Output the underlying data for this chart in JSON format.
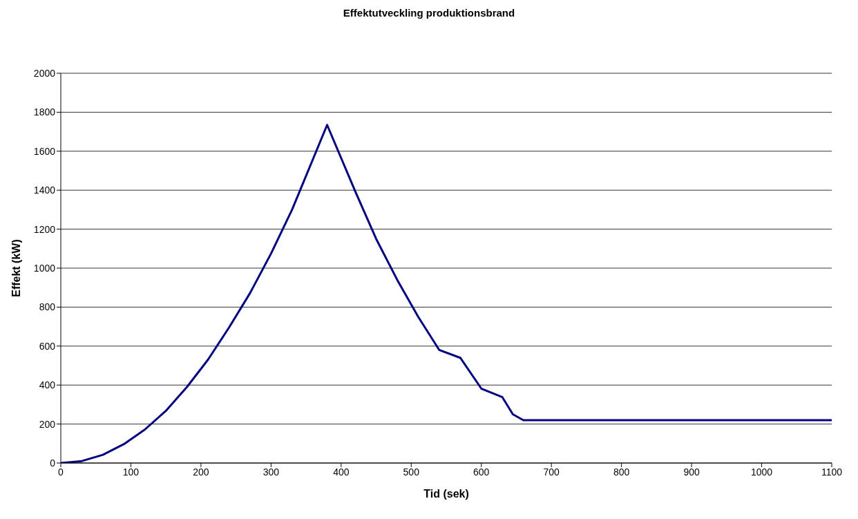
{
  "chart_data": {
    "type": "line",
    "title": "Effektutveckling produktionsbrand",
    "xlabel": "Tid (sek)",
    "ylabel": "Effekt (kW)",
    "x": [
      0,
      30,
      60,
      90,
      120,
      150,
      180,
      210,
      240,
      270,
      300,
      330,
      380,
      420,
      450,
      480,
      510,
      540,
      570,
      600,
      630,
      645,
      660,
      1100
    ],
    "series": [
      {
        "color": "#000080",
        "values": [
          0,
          10,
          42,
          97,
          172,
          268,
          390,
          530,
          695,
          872,
          1075,
          1300,
          1735,
          1395,
          1150,
          940,
          750,
          580,
          540,
          382,
          338,
          250,
          220,
          220
        ]
      }
    ],
    "xlim": [
      0,
      1100
    ],
    "xticks": [
      0,
      100,
      200,
      300,
      400,
      500,
      600,
      700,
      800,
      900,
      1000,
      1100
    ],
    "ylim": [
      0,
      2000
    ],
    "yticks": [
      0,
      200,
      400,
      600,
      800,
      1000,
      1200,
      1400,
      1600,
      1800,
      2000
    ],
    "grid": "y",
    "legend": false,
    "marker": "none",
    "line_style": "solid"
  }
}
